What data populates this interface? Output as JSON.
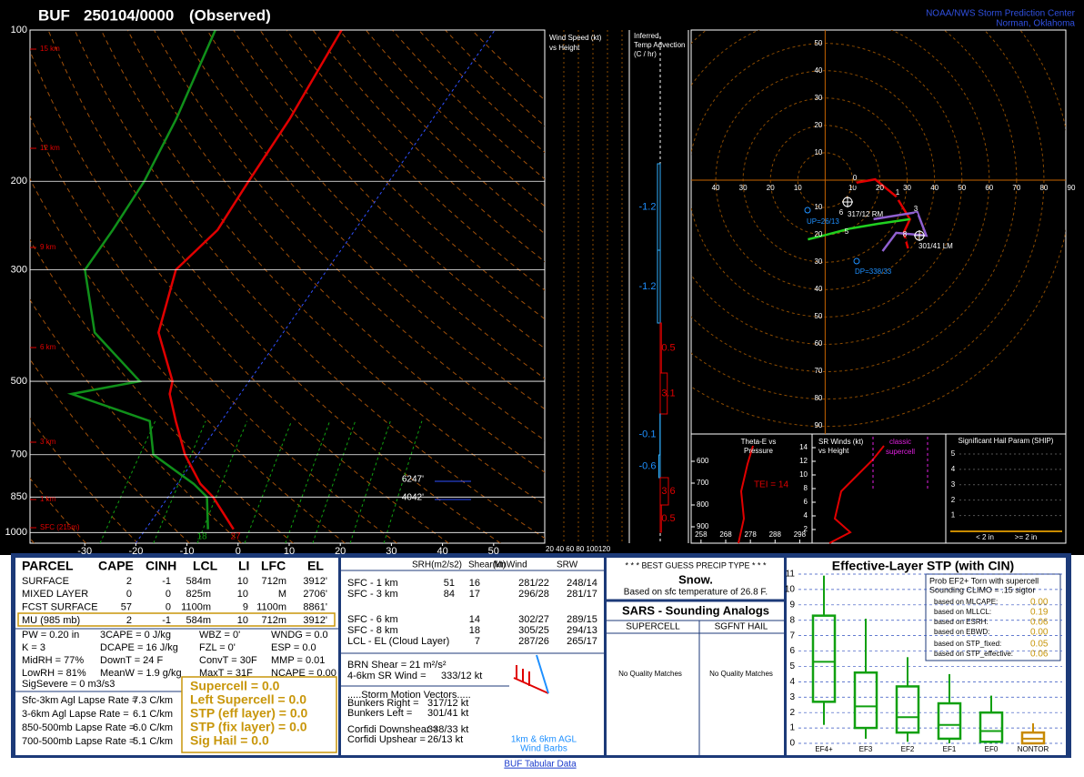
{
  "header": {
    "station": "BUF",
    "time": "250104/0000",
    "status": "(Observed)",
    "org": "NOAA/NWS Storm Prediction Center",
    "location": "Norman, Oklahoma"
  },
  "chart_data": [
    {
      "type": "skewt",
      "pressure": [
        985,
        850,
        800,
        700,
        600,
        530,
        500,
        400,
        300,
        250,
        200,
        150,
        100
      ],
      "series": [
        {
          "color": "#e00000",
          "values": [
            -2.8,
            -11.2,
            -15.5,
            -22.5,
            -28.9,
            -33.8,
            -35,
            -44.4,
            -49.6,
            -46.9,
            -47.5,
            -48,
            -50
          ]
        },
        {
          "color": "#10901a",
          "values": [
            -7.8,
            -12.4,
            -16.8,
            -28.7,
            -34,
            -53,
            -41.4,
            -56.9,
            -67.4,
            -67.4,
            -67.9,
            -70.2,
            -74.7
          ]
        }
      ],
      "xlim": [
        -40,
        60
      ],
      "ylim": [
        1050,
        100
      ],
      "log_scale": true,
      "grid": true,
      "xticks": [
        -30,
        -20,
        -10,
        0,
        10,
        20,
        30,
        40,
        50
      ],
      "yticks": [
        100,
        200,
        300,
        500,
        700,
        850,
        1000
      ],
      "height_labels": [
        "15 km",
        "12 km",
        "9 km",
        "6 km",
        "3 km",
        "1 km",
        "SFC (215m)"
      ],
      "annotations": [
        "6247'",
        "4042'",
        "18",
        "27"
      ]
    },
    {
      "type": "hodograph",
      "xlim": [
        -49,
        88
      ],
      "ylim": [
        -93,
        55
      ],
      "xticks": [
        {
          "value": -40,
          "label": "40"
        },
        {
          "value": -30,
          "label": "30"
        },
        {
          "value": -20,
          "label": "20"
        },
        {
          "value": -10,
          "label": "10"
        },
        10,
        20,
        30,
        40,
        50,
        60,
        70,
        80,
        90
      ],
      "yticks": [
        50,
        40,
        30,
        20,
        10,
        {
          "value": -10,
          "label": "10"
        },
        {
          "value": -20,
          "label": "20"
        },
        {
          "value": -30,
          "label": "30"
        },
        {
          "value": -40,
          "label": "40"
        },
        {
          "value": -50,
          "label": "50"
        },
        {
          "value": -60,
          "label": "60"
        },
        {
          "value": -70,
          "label": "70"
        },
        {
          "value": -80,
          "label": "80"
        },
        {
          "value": -90,
          "label": "90"
        }
      ],
      "series": [
        {
          "color": "#e00000",
          "x": [
            11,
            18.3,
            26,
            31,
            28.7,
            30.3
          ],
          "values": [
            -1,
            0.3,
            -6,
            -14.3,
            -19.3,
            -25
          ]
        },
        {
          "color": "#20d020",
          "x": [
            31,
            19.3,
            9.3,
            -0.7,
            -6.3
          ],
          "values": [
            -14.3,
            -16,
            -17.7,
            -20.3,
            -21.7
          ]
        },
        {
          "color": "#9060d0",
          "x": [
            17.7,
            33.7,
            37,
            26,
            21
          ],
          "values": [
            -14.3,
            -11.7,
            -20.3,
            -19.3,
            -26
          ]
        }
      ],
      "point_labels": [
        "0",
        "1",
        "3",
        "5",
        "6",
        "8"
      ],
      "annotations": [
        "317/12 RM",
        "UP=26/13",
        "301/41 LM",
        "DP=338/33"
      ]
    },
    {
      "type": "boxplot",
      "title": "Effective-Layer STP (with CIN)",
      "categories": [
        "EF4+",
        "EF3",
        "EF2",
        "EF1",
        "EF0",
        "NONTOR"
      ],
      "colors": [
        "#10a010",
        "#10a010",
        "#10a010",
        "#10a010",
        "#10a010",
        "#c88a00"
      ],
      "min": [
        1.2,
        0.3,
        0.1,
        0,
        0,
        0
      ],
      "q1": [
        2.7,
        1.0,
        0.7,
        0.3,
        0.1,
        0
      ],
      "median": [
        5.3,
        2.4,
        1.7,
        1.2,
        0.8,
        0.3
      ],
      "q3": [
        8.3,
        4.6,
        3.7,
        2.6,
        2.0,
        0.7
      ],
      "max": [
        10.9,
        8.1,
        5.6,
        4.5,
        3.1,
        1.3
      ],
      "ylim": [
        0,
        11
      ],
      "yticks": [
        0,
        1,
        2,
        3,
        4,
        5,
        6,
        7,
        8,
        9,
        10,
        11
      ],
      "grid": true
    }
  ],
  "wind_panel": {
    "title": [
      "Wind Speed (kt)",
      "vs Height"
    ],
    "axis": "20 40 60 80 100120"
  },
  "advection": {
    "title": [
      "Inferred",
      "Temp Advection",
      "(C / hr)"
    ],
    "values": [
      -1.2,
      -1.2,
      0.5,
      3.1,
      -0.1,
      -0.6,
      3.6,
      0.5
    ]
  },
  "theta_e": {
    "title": [
      "Theta-E vs",
      "Pressure"
    ],
    "ylim": [
      475,
      975
    ],
    "yticks": [
      600,
      700,
      800,
      900
    ],
    "xlim": [
      254,
      303
    ],
    "xticks": [
      258,
      268,
      278,
      288,
      298
    ],
    "tei": "TEI = 14"
  },
  "sr_winds": {
    "title": [
      "SR Winds (kt)",
      "vs Height"
    ],
    "ylim": [
      0,
      16
    ],
    "yticks": [
      14,
      12,
      10,
      8,
      6,
      4,
      2
    ],
    "label": [
      "classic",
      "supercell"
    ]
  },
  "ship": {
    "title": "Significant Hail Param (SHIP)",
    "ylim": [
      -0.8,
      6.3
    ],
    "yticks": [
      5,
      4,
      3,
      2,
      1
    ],
    "categories": [
      "< 2 in",
      ">= 2 in"
    ]
  },
  "parcel": {
    "header": [
      "PARCEL",
      "CAPE",
      "CINH",
      "LCL",
      "LI",
      "LFC",
      "EL"
    ],
    "rows": [
      [
        "SURFACE",
        "2",
        "-1",
        "584m",
        "10",
        "712m",
        "3912'"
      ],
      [
        "MIXED LAYER",
        "0",
        "0",
        "825m",
        "10",
        "M",
        "2706'"
      ],
      [
        "FCST SURFACE",
        "57",
        "0",
        "1100m",
        "9",
        "1100m",
        "8861'"
      ],
      [
        "MU   (985 mb)",
        "2",
        "-1",
        "584m",
        "10",
        "712m",
        "3912'"
      ]
    ]
  },
  "indices": [
    [
      "PW = 0.20 in",
      "3CAPE = 0 J/kg",
      "WBZ = 0'",
      "WNDG = 0.0"
    ],
    [
      "K = 3",
      "DCAPE = 16 J/kg",
      "FZL = 0'",
      "ESP = 0.0"
    ],
    [
      "MidRH = 77%",
      "DownT = 24 F",
      "ConvT = 30F",
      "MMP = 0.01"
    ],
    [
      "LowRH = 81%",
      "MeanW = 1.9 g/kg",
      "MaxT = 31F",
      "NCAPE = 0.00"
    ]
  ],
  "sig_severe": "SigSevere = 0 m3/s3",
  "lapse_rates": [
    [
      "Sfc-3km Agl Lapse Rate =",
      "7.3 C/km"
    ],
    [
      "3-6km Agl Lapse Rate =",
      "6.1 C/km"
    ],
    [
      "850-500mb Lapse Rate =",
      "6.0 C/km"
    ],
    [
      "700-500mb Lapse Rate =",
      "5.1 C/km"
    ]
  ],
  "composites": [
    "Supercell = 0.0",
    "Left Supercell = 0.0",
    "STP (eff layer) = 0.0",
    "STP (fix layer) = 0.0",
    "Sig Hail = 0.0"
  ],
  "kinematics": {
    "header": [
      "SRH(m2/s2)",
      "Shear(kt)",
      "MnWind",
      "SRW"
    ],
    "rows": [
      [
        "SFC - 1 km",
        "51",
        "16",
        "281/22",
        "248/14"
      ],
      [
        "SFC - 3 km",
        "84",
        "17",
        "296/28",
        "281/17"
      ],
      [
        "SFC - 6 km",
        null,
        "14",
        "302/27",
        "289/15"
      ],
      [
        "SFC - 8 km",
        null,
        "18",
        "305/25",
        "294/13"
      ],
      [
        "LCL - EL (Cloud Layer)",
        null,
        "7",
        "287/26",
        "265/17"
      ]
    ],
    "brn": "BRN Shear = 21 m²/s²",
    "sr_wind": [
      "4-6km SR Wind =",
      "333/12 kt"
    ],
    "motion_title": ".....Storm Motion Vectors.....",
    "motions": [
      [
        "Bunkers Right =",
        "317/12 kt"
      ],
      [
        "Bunkers Left =",
        "301/41 kt"
      ],
      [
        "Corfidi Downshear =",
        "338/33 kt"
      ],
      [
        "Corfidi Upshear =",
        "26/13 kt"
      ]
    ],
    "barb_note": [
      "1km & 6km AGL",
      "Wind Barbs"
    ]
  },
  "precip": {
    "title": "* * * BEST GUESS PRECIP TYPE * * *",
    "type": "Snow.",
    "note": "Based on sfc temperature of 26.8 F."
  },
  "sars": {
    "title": "SARS - Sounding Analogs",
    "headers": [
      "SUPERCELL",
      "SGFNT HAIL"
    ],
    "results": [
      "No Quality Matches",
      "No Quality Matches"
    ]
  },
  "stp_legend": {
    "title": [
      "Prob EF2+ Torn with supercell",
      "Sounding CLIMO = .15 sigtor"
    ],
    "rows": [
      [
        "based on MLCAPE:",
        "0.00"
      ],
      [
        "based on MLLCL:",
        "0.19"
      ],
      [
        "based on ESRH:",
        "0.06"
      ],
      [
        "based on EBWD:",
        "0.00"
      ],
      [
        "based on STP_fixed:",
        "0.05"
      ],
      [
        "based on STP_effective:",
        "0.06"
      ]
    ]
  },
  "footer": {
    "link": "BUF Tabular Data"
  }
}
